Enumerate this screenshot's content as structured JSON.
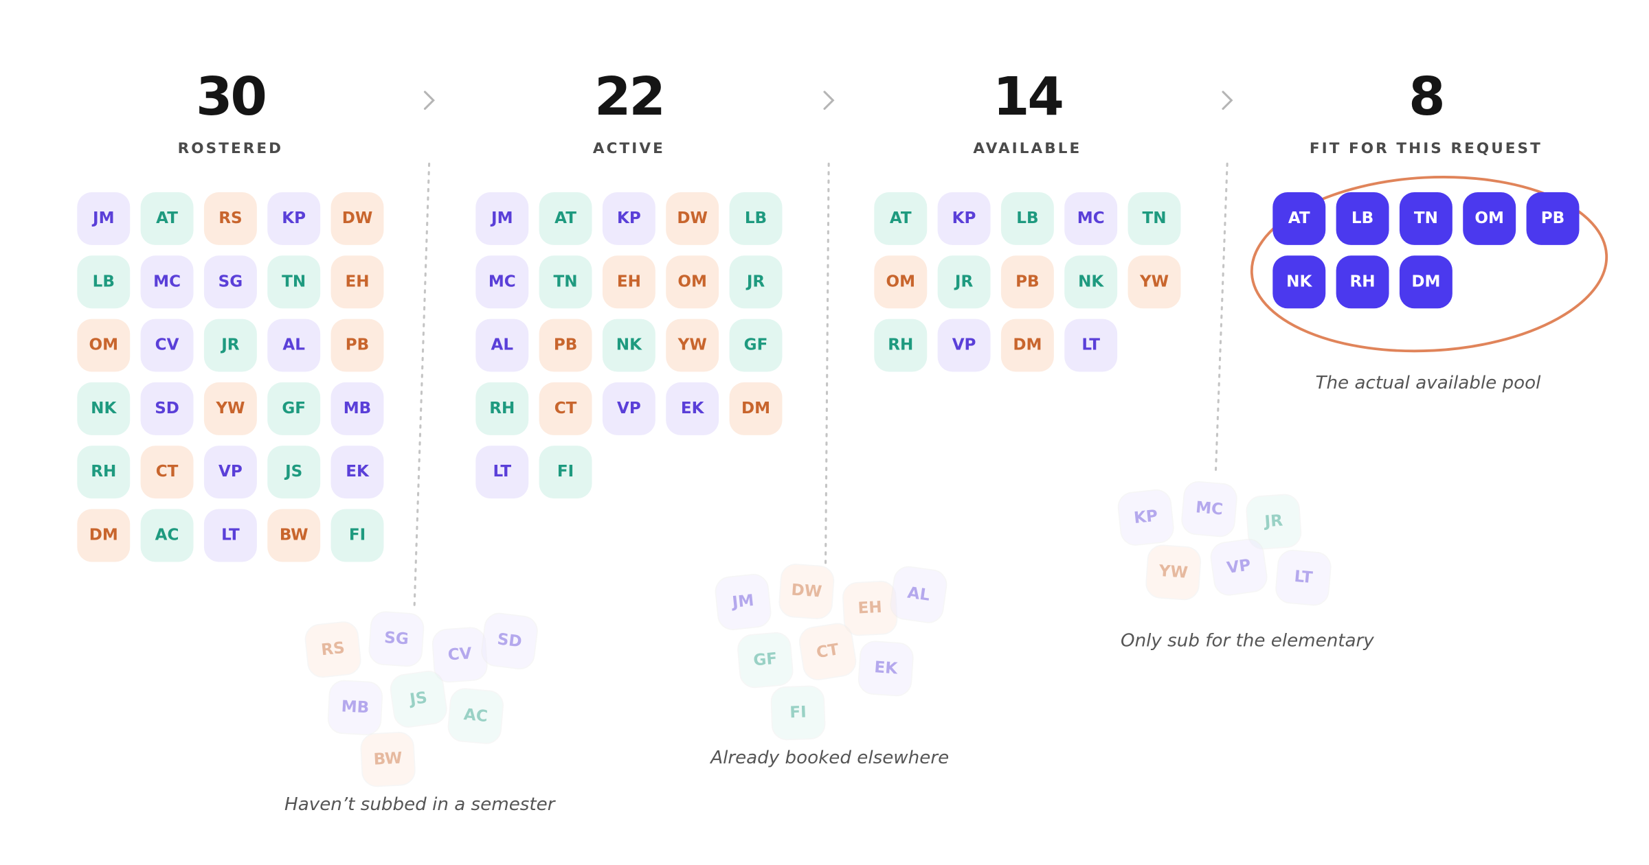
{
  "stages": [
    {
      "count": 30,
      "label": "ROSTERED",
      "members": [
        "JM",
        "AT",
        "RS",
        "KP",
        "DW",
        "LB",
        "MC",
        "SG",
        "TN",
        "EH",
        "OM",
        "CV",
        "JR",
        "AL",
        "PB",
        "NK",
        "SD",
        "YW",
        "GF",
        "MB",
        "RH",
        "CT",
        "VP",
        "JS",
        "EK",
        "DM",
        "AC",
        "LT",
        "BW",
        "FI"
      ]
    },
    {
      "count": 22,
      "label": "ACTIVE",
      "members": [
        "JM",
        "AT",
        "KP",
        "DW",
        "LB",
        "MC",
        "TN",
        "EH",
        "OM",
        "JR",
        "AL",
        "PB",
        "NK",
        "YW",
        "GF",
        "RH",
        "CT",
        "VP",
        "EK",
        "DM",
        "LT",
        "FI"
      ]
    },
    {
      "count": 14,
      "label": "AVAILABLE",
      "members": [
        "AT",
        "KP",
        "LB",
        "MC",
        "TN",
        "OM",
        "JR",
        "PB",
        "NK",
        "YW",
        "RH",
        "VP",
        "DM",
        "LT"
      ]
    },
    {
      "count": 8,
      "label": "FIT FOR THIS REQUEST",
      "members": [
        "AT",
        "LB",
        "TN",
        "OM",
        "PB",
        "NK",
        "RH",
        "DM"
      ],
      "highlight": true,
      "caption": "The actual available pool"
    }
  ],
  "dropped": [
    {
      "caption": "Haven’t subbed in a semester",
      "members": [
        "RS",
        "SG",
        "CV",
        "SD",
        "MB",
        "JS",
        "AC",
        "BW"
      ]
    },
    {
      "caption": "Already booked elsewhere",
      "members": [
        "JM",
        "DW",
        "EH",
        "AL",
        "GF",
        "CT",
        "EK",
        "FI"
      ]
    },
    {
      "caption": "Only  sub for the elementary",
      "members": [
        "KP",
        "MC",
        "JR",
        "YW",
        "VP",
        "LT"
      ]
    }
  ],
  "tones": {
    "JM": "purple",
    "AT": "teal",
    "RS": "orange",
    "KP": "purple",
    "DW": "orange",
    "LB": "teal",
    "MC": "purple",
    "SG": "purple",
    "TN": "teal",
    "EH": "orange",
    "OM": "orange",
    "CV": "purple",
    "JR": "teal",
    "AL": "purple",
    "PB": "orange",
    "NK": "teal",
    "SD": "purple",
    "YW": "orange",
    "GF": "teal",
    "MB": "purple",
    "RH": "teal",
    "CT": "orange",
    "VP": "purple",
    "JS": "teal",
    "EK": "purple",
    "DM": "orange",
    "AC": "teal",
    "LT": "purple",
    "BW": "orange",
    "FI": "teal"
  }
}
